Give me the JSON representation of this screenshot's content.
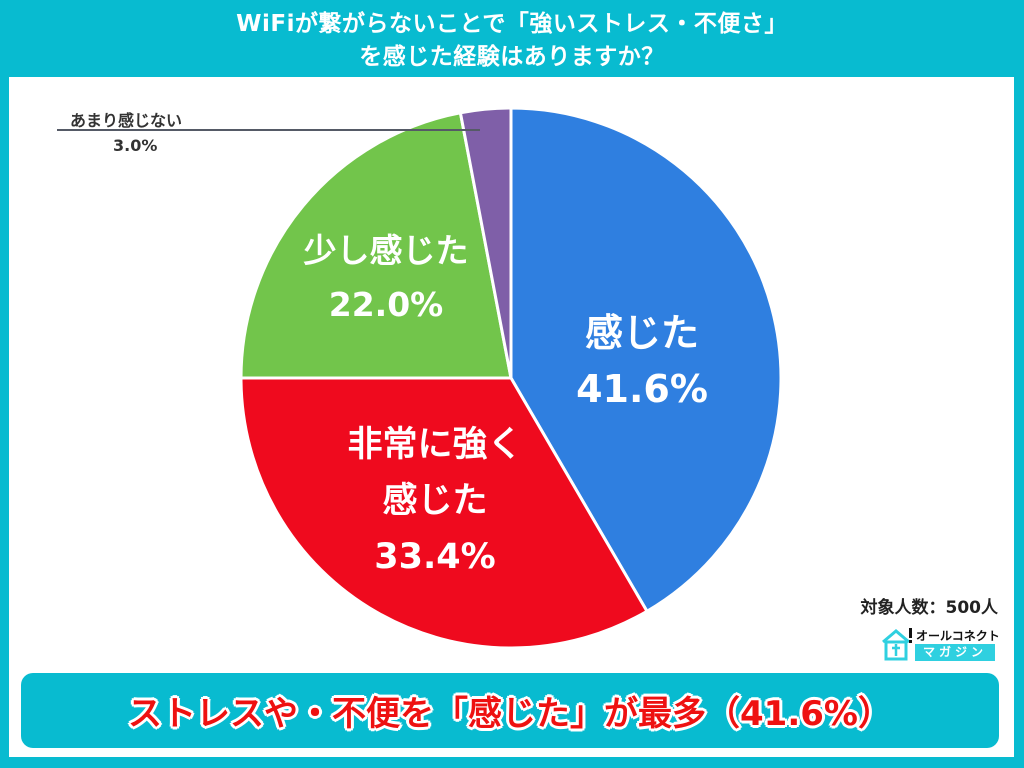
{
  "title": {
    "line1": "WiFiが繋がらないことで「強いストレス・不便さ」",
    "line2": "を感じた経験はありますか？"
  },
  "chart_data": {
    "type": "pie",
    "title": "WiFiが繋がらないことで「強いストレス・不便さ」を感じた経験はありますか？",
    "start_angle": "12 o'clock, clockwise",
    "slices": [
      {
        "label": "感じた",
        "value": 41.6,
        "display": "41.6%",
        "color": "#2f7fe0"
      },
      {
        "label": "非常に強く感じた",
        "value": 33.4,
        "display": "33.4%",
        "color": "#ef0a1e"
      },
      {
        "label": "少し感じた",
        "value": 22.0,
        "display": "22.0%",
        "color": "#72c54b"
      },
      {
        "label": "あまり感じない",
        "value": 3.0,
        "display": "3.0%",
        "color": "#7f5fa8"
      }
    ],
    "legend": "none (labels on slices)",
    "annotations": [
      "対象人数：500人"
    ]
  },
  "labels": {
    "blue_name": "感じた",
    "blue_value": "41.6%",
    "red_name_1": "非常に強く",
    "red_name_2": "感じた",
    "red_value": "33.4%",
    "green_name": "少し感じた",
    "green_value": "22.0%",
    "purple_name": "あまり感じない",
    "purple_value": "3.0%"
  },
  "sample_size": "対象人数：500人",
  "logo": {
    "top": "オールコネクト",
    "bottom": "マガジン",
    "accent": "#2fd0e0"
  },
  "banner": {
    "text": "ストレスや・不便を「感じた」が最多（41.6%）",
    "text_color": "#ee1111",
    "bg_color": "#08bbd0"
  },
  "colors": {
    "background": "#08bbd0",
    "panel": "#ffffff"
  }
}
